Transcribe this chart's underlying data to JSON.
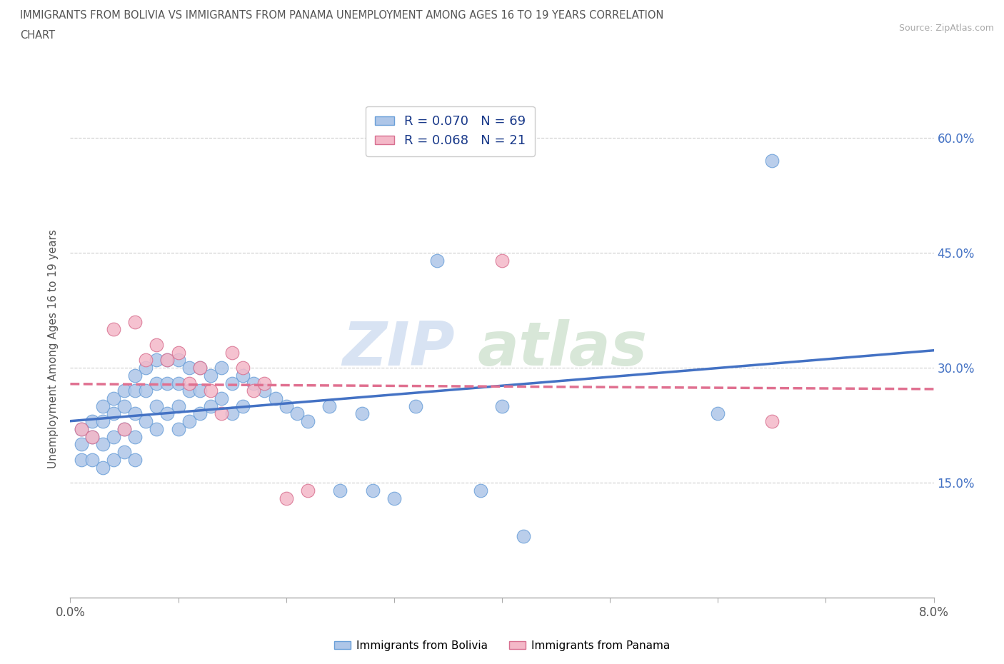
{
  "title_line1": "IMMIGRANTS FROM BOLIVIA VS IMMIGRANTS FROM PANAMA UNEMPLOYMENT AMONG AGES 16 TO 19 YEARS CORRELATION",
  "title_line2": "CHART",
  "source": "Source: ZipAtlas.com",
  "ylabel": "Unemployment Among Ages 16 to 19 years",
  "xlim": [
    0.0,
    0.08
  ],
  "ylim": [
    0.0,
    0.65
  ],
  "xticks": [
    0.0,
    0.01,
    0.02,
    0.03,
    0.04,
    0.05,
    0.06,
    0.07,
    0.08
  ],
  "xticklabels_show": [
    "0.0%",
    "",
    "",
    "",
    "",
    "",
    "",
    "",
    "8.0%"
  ],
  "yticks": [
    0.0,
    0.15,
    0.3,
    0.45,
    0.6
  ],
  "yticklabels_right": [
    "",
    "15.0%",
    "30.0%",
    "45.0%",
    "60.0%"
  ],
  "bolivia_R": "0.070",
  "bolivia_N": "69",
  "panama_R": "0.068",
  "panama_N": "21",
  "bolivia_color": "#aec6e8",
  "bolivia_edge": "#6a9fd8",
  "panama_color": "#f4b8c8",
  "panama_edge": "#d87090",
  "bolivia_line_color": "#4472c4",
  "panama_line_color": "#e07090",
  "legend_label_bolivia": "Immigrants from Bolivia",
  "legend_label_panama": "Immigrants from Panama",
  "bolivia_x": [
    0.001,
    0.001,
    0.001,
    0.002,
    0.002,
    0.002,
    0.003,
    0.003,
    0.003,
    0.003,
    0.004,
    0.004,
    0.004,
    0.004,
    0.005,
    0.005,
    0.005,
    0.005,
    0.006,
    0.006,
    0.006,
    0.006,
    0.006,
    0.007,
    0.007,
    0.007,
    0.008,
    0.008,
    0.008,
    0.008,
    0.009,
    0.009,
    0.009,
    0.01,
    0.01,
    0.01,
    0.01,
    0.011,
    0.011,
    0.011,
    0.012,
    0.012,
    0.012,
    0.013,
    0.013,
    0.014,
    0.014,
    0.015,
    0.015,
    0.016,
    0.016,
    0.017,
    0.018,
    0.019,
    0.02,
    0.021,
    0.022,
    0.024,
    0.025,
    0.027,
    0.028,
    0.03,
    0.032,
    0.034,
    0.038,
    0.04,
    0.042,
    0.06,
    0.065
  ],
  "bolivia_y": [
    0.22,
    0.2,
    0.18,
    0.23,
    0.21,
    0.18,
    0.25,
    0.23,
    0.2,
    0.17,
    0.26,
    0.24,
    0.21,
    0.18,
    0.27,
    0.25,
    0.22,
    0.19,
    0.29,
    0.27,
    0.24,
    0.21,
    0.18,
    0.3,
    0.27,
    0.23,
    0.31,
    0.28,
    0.25,
    0.22,
    0.31,
    0.28,
    0.24,
    0.31,
    0.28,
    0.25,
    0.22,
    0.3,
    0.27,
    0.23,
    0.3,
    0.27,
    0.24,
    0.29,
    0.25,
    0.3,
    0.26,
    0.28,
    0.24,
    0.29,
    0.25,
    0.28,
    0.27,
    0.26,
    0.25,
    0.24,
    0.23,
    0.25,
    0.14,
    0.24,
    0.14,
    0.13,
    0.25,
    0.44,
    0.14,
    0.25,
    0.08,
    0.24,
    0.57
  ],
  "panama_x": [
    0.001,
    0.002,
    0.004,
    0.005,
    0.006,
    0.007,
    0.008,
    0.009,
    0.01,
    0.011,
    0.012,
    0.013,
    0.014,
    0.015,
    0.016,
    0.017,
    0.018,
    0.02,
    0.022,
    0.04,
    0.065
  ],
  "panama_y": [
    0.22,
    0.21,
    0.35,
    0.22,
    0.36,
    0.31,
    0.33,
    0.31,
    0.32,
    0.28,
    0.3,
    0.27,
    0.24,
    0.32,
    0.3,
    0.27,
    0.28,
    0.13,
    0.14,
    0.44,
    0.23
  ]
}
